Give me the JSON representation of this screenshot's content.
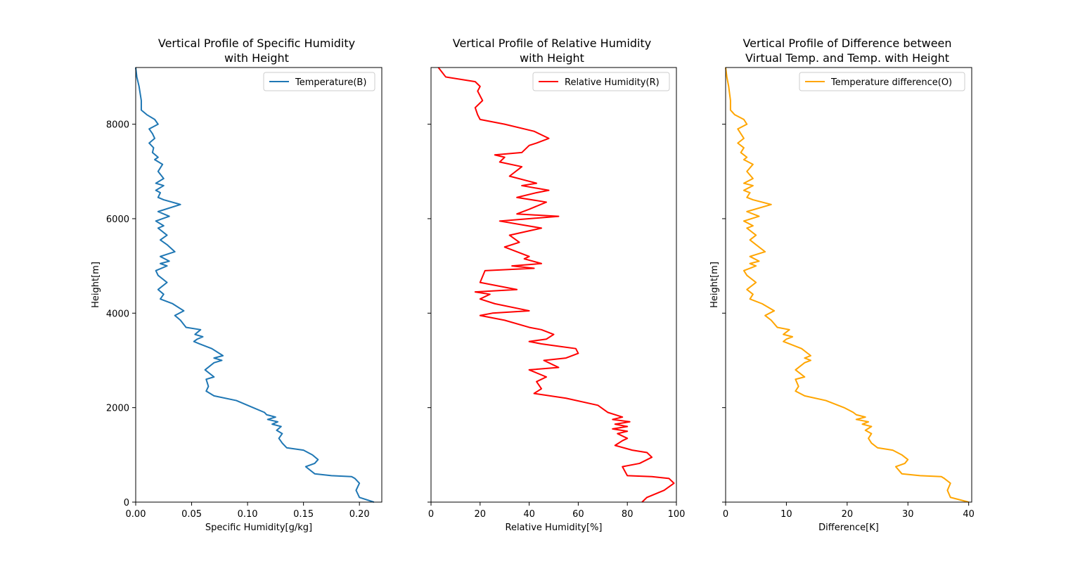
{
  "chart_data": [
    {
      "type": "line",
      "title": "Vertical Profile of Specific Humidity\nwith Height",
      "xlabel": "Specific Humidity[g/kg]",
      "ylabel": "Height[m]",
      "xlim": [
        0,
        0.22
      ],
      "ylim": [
        0,
        9200
      ],
      "xticks": [
        0.0,
        0.05,
        0.1,
        0.15,
        0.2
      ],
      "xtick_labels": [
        "0.00",
        "0.05",
        "0.10",
        "0.15",
        "0.20"
      ],
      "yticks": [
        0,
        2000,
        4000,
        6000,
        8000
      ],
      "ytick_labels": [
        "0",
        "2000",
        "4000",
        "6000",
        "8000"
      ],
      "show_yticklabels": true,
      "grid": false,
      "legend_position": "upper right",
      "color": "#1f77b4",
      "series": [
        {
          "name": "Temperature(B)",
          "x": [
            0.213,
            0.2,
            0.197,
            0.2,
            0.196,
            0.193,
            0.175,
            0.16,
            0.152,
            0.16,
            0.163,
            0.158,
            0.15,
            0.135,
            0.131,
            0.128,
            0.131,
            0.126,
            0.13,
            0.122,
            0.127,
            0.118,
            0.125,
            0.117,
            0.115,
            0.105,
            0.09,
            0.07,
            0.063,
            0.065,
            0.063,
            0.07,
            0.062,
            0.07,
            0.077,
            0.07,
            0.078,
            0.068,
            0.057,
            0.052,
            0.055,
            0.06,
            0.053,
            0.058,
            0.045,
            0.04,
            0.035,
            0.043,
            0.033,
            0.022,
            0.025,
            0.02,
            0.028,
            0.02,
            0.018,
            0.028,
            0.022,
            0.03,
            0.022,
            0.035,
            0.028,
            0.022,
            0.028,
            0.02,
            0.025,
            0.018,
            0.03,
            0.02,
            0.04,
            0.025,
            0.02,
            0.022,
            0.018,
            0.025,
            0.018,
            0.025,
            0.02,
            0.024,
            0.017,
            0.02,
            0.015,
            0.016,
            0.012,
            0.017,
            0.015,
            0.012,
            0.02,
            0.017,
            0.01,
            0.005,
            0.005,
            0.003,
            0.001,
            0.0
          ],
          "y": [
            0,
            100,
            250,
            400,
            500,
            540,
            560,
            600,
            750,
            820,
            900,
            1000,
            1100,
            1150,
            1250,
            1350,
            1450,
            1520,
            1600,
            1650,
            1700,
            1750,
            1800,
            1850,
            1900,
            2000,
            2150,
            2250,
            2350,
            2450,
            2600,
            2650,
            2800,
            2950,
            3000,
            3050,
            3100,
            3250,
            3350,
            3400,
            3450,
            3500,
            3550,
            3650,
            3700,
            3850,
            3950,
            4050,
            4200,
            4300,
            4400,
            4500,
            4650,
            4800,
            4900,
            5000,
            5050,
            5100,
            5200,
            5300,
            5450,
            5550,
            5650,
            5800,
            5850,
            5950,
            6050,
            6150,
            6300,
            6400,
            6450,
            6550,
            6600,
            6700,
            6750,
            6850,
            7000,
            7150,
            7250,
            7300,
            7400,
            7500,
            7600,
            7700,
            7800,
            7900,
            8000,
            8100,
            8200,
            8300,
            8500,
            8800,
            9000,
            9200
          ]
        }
      ]
    },
    {
      "type": "line",
      "title": "Vertical Profile of Relative Humidity\nwith Height",
      "xlabel": "Relative Humidity[%]",
      "ylabel": "",
      "xlim": [
        0,
        100
      ],
      "ylim": [
        0,
        9200
      ],
      "xticks": [
        0,
        20,
        40,
        60,
        80,
        100
      ],
      "xtick_labels": [
        "0",
        "20",
        "40",
        "60",
        "80",
        "100"
      ],
      "yticks": [
        0,
        2000,
        4000,
        6000,
        8000
      ],
      "ytick_labels": [
        "",
        "",
        "",
        "",
        ""
      ],
      "show_yticklabels": false,
      "grid": false,
      "legend_position": "upper right",
      "color": "#ff0000",
      "series": [
        {
          "name": "Relative Humidity(R)",
          "x": [
            86,
            88,
            95,
            99,
            97,
            90,
            80,
            78,
            85,
            90,
            88,
            82,
            75,
            78,
            80,
            76,
            80,
            74,
            80,
            75,
            81,
            74,
            78,
            75,
            72,
            68,
            55,
            42,
            45,
            43,
            47,
            40,
            52,
            46,
            55,
            60,
            59,
            52,
            45,
            40,
            47,
            50,
            45,
            40,
            30,
            20,
            25,
            40,
            26,
            20,
            24,
            18,
            35,
            20,
            22,
            42,
            33,
            45,
            38,
            40,
            30,
            36,
            32,
            45,
            28,
            52,
            35,
            40,
            47,
            35,
            43,
            48,
            37,
            43,
            32,
            37,
            28,
            30,
            26,
            37,
            40,
            43,
            48,
            42,
            30,
            20,
            19,
            18,
            21,
            19,
            20,
            18,
            6,
            3
          ],
          "y": [
            0,
            100,
            250,
            400,
            500,
            540,
            560,
            750,
            820,
            950,
            1050,
            1100,
            1200,
            1300,
            1350,
            1450,
            1500,
            1550,
            1600,
            1650,
            1700,
            1750,
            1800,
            1850,
            1900,
            2050,
            2200,
            2300,
            2400,
            2550,
            2650,
            2800,
            2850,
            3000,
            3050,
            3150,
            3250,
            3300,
            3350,
            3400,
            3450,
            3550,
            3650,
            3700,
            3850,
            3950,
            4000,
            4050,
            4200,
            4300,
            4400,
            4450,
            4500,
            4650,
            4900,
            4950,
            5000,
            5050,
            5150,
            5200,
            5400,
            5500,
            5650,
            5800,
            5950,
            6050,
            6100,
            6200,
            6350,
            6450,
            6550,
            6600,
            6700,
            6750,
            6900,
            7100,
            7200,
            7300,
            7350,
            7400,
            7550,
            7600,
            7700,
            7850,
            8000,
            8100,
            8200,
            8350,
            8500,
            8700,
            8800,
            8900,
            9000,
            9200
          ]
        }
      ]
    },
    {
      "type": "line",
      "title": "Vertical Profile of Difference between\nVirtual Temp. and Temp. with Height",
      "xlabel": "Difference[K]",
      "ylabel": "Height[m]",
      "xlim": [
        0,
        40.5
      ],
      "ylim": [
        0,
        9200
      ],
      "xticks": [
        0,
        10,
        20,
        30,
        40
      ],
      "xtick_labels": [
        "0",
        "10",
        "20",
        "30",
        "40"
      ],
      "yticks": [
        0,
        2000,
        4000,
        6000,
        8000
      ],
      "ytick_labels": [
        "",
        "",
        "",
        "",
        ""
      ],
      "show_yticklabels": false,
      "grid": false,
      "legend_position": "upper right",
      "color": "#ffa500",
      "series": [
        {
          "name": "Temperature difference(O)",
          "x": [
            40.0,
            37.0,
            36.5,
            37.0,
            36.0,
            35.5,
            32.0,
            29.0,
            28.0,
            29.5,
            30.0,
            29.0,
            27.5,
            25.0,
            24.0,
            23.5,
            24.0,
            23.0,
            24.0,
            22.5,
            23.5,
            21.5,
            23.0,
            21.5,
            21.0,
            19.5,
            16.5,
            13.0,
            11.5,
            12.0,
            11.5,
            13.0,
            11.5,
            13.0,
            14.0,
            13.0,
            14.0,
            12.5,
            10.5,
            9.5,
            10.0,
            11.0,
            9.5,
            10.5,
            8.5,
            7.5,
            6.5,
            8.0,
            6.0,
            4.0,
            4.5,
            3.5,
            5.0,
            3.5,
            3.0,
            5.0,
            4.0,
            5.5,
            4.0,
            6.5,
            5.0,
            4.0,
            5.0,
            3.5,
            4.5,
            3.0,
            5.5,
            3.5,
            7.5,
            4.5,
            3.5,
            4.0,
            3.0,
            4.5,
            3.0,
            4.5,
            3.5,
            4.5,
            3.0,
            3.5,
            2.5,
            3.0,
            2.0,
            3.0,
            2.5,
            2.0,
            3.5,
            3.0,
            1.5,
            0.8,
            0.8,
            0.5,
            0.2,
            0.0
          ],
          "y": [
            0,
            100,
            250,
            400,
            500,
            540,
            560,
            600,
            750,
            820,
            900,
            1000,
            1100,
            1150,
            1250,
            1350,
            1450,
            1520,
            1600,
            1650,
            1700,
            1750,
            1800,
            1850,
            1900,
            2000,
            2150,
            2250,
            2350,
            2450,
            2600,
            2650,
            2800,
            2950,
            3000,
            3050,
            3100,
            3250,
            3350,
            3400,
            3450,
            3500,
            3550,
            3650,
            3700,
            3850,
            3950,
            4050,
            4200,
            4300,
            4400,
            4500,
            4650,
            4800,
            4900,
            5000,
            5050,
            5100,
            5200,
            5300,
            5450,
            5550,
            5650,
            5800,
            5850,
            5950,
            6050,
            6150,
            6300,
            6400,
            6450,
            6550,
            6600,
            6700,
            6750,
            6850,
            7000,
            7150,
            7250,
            7300,
            7400,
            7500,
            7600,
            7700,
            7800,
            7900,
            8000,
            8100,
            8200,
            8300,
            8500,
            8800,
            9000,
            9200
          ]
        }
      ]
    }
  ]
}
